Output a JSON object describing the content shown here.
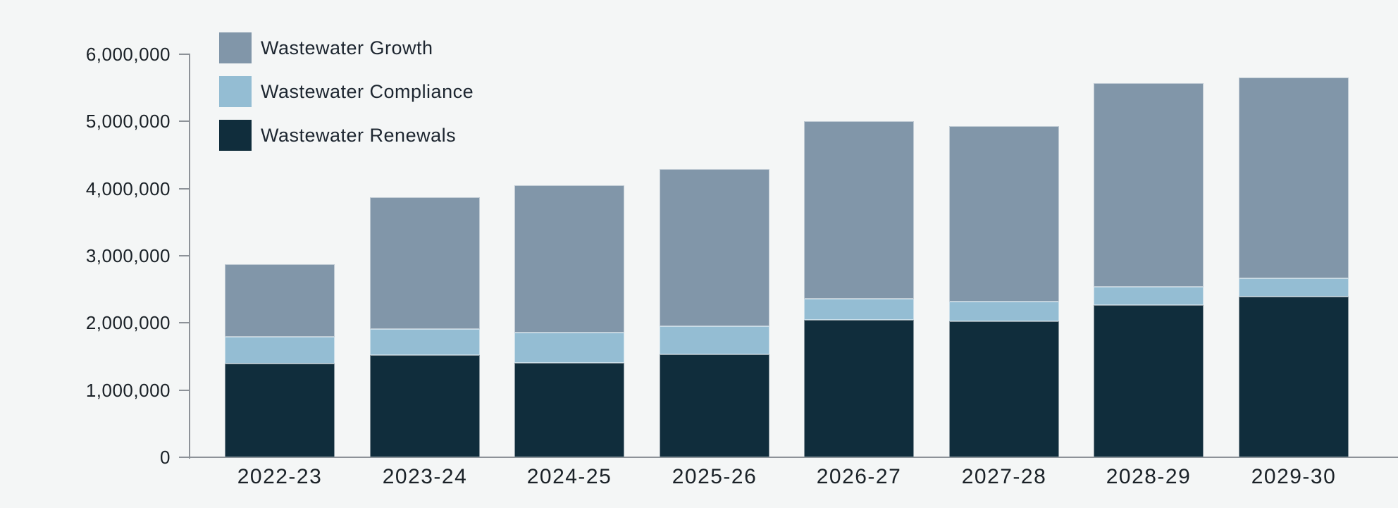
{
  "colors": {
    "background": "#f4f6f6",
    "axis": "#8d9298",
    "text": "#1a2127",
    "renewals": "#102d3c",
    "compliance": "#94bdd3",
    "growth": "#8196a9"
  },
  "legend": {
    "items": [
      {
        "label": "Wastewater Growth",
        "color": "#8196a9"
      },
      {
        "label": "Wastewater Compliance",
        "color": "#94bdd3"
      },
      {
        "label": "Wastewater Renewals",
        "color": "#102d3c"
      }
    ]
  },
  "chart_data": {
    "type": "bar",
    "stacked": true,
    "title": "",
    "xlabel": "",
    "ylabel": "",
    "grid": false,
    "legend_position": "top-left",
    "categories": [
      "2022-23",
      "2023-24",
      "2024-25",
      "2025-26",
      "2026-27",
      "2027-28",
      "2028-29",
      "2029-30"
    ],
    "series": [
      {
        "name": "Wastewater Renewals",
        "color": "#102d3c",
        "values": [
          1400000,
          1520000,
          1410000,
          1530000,
          2050000,
          2020000,
          2270000,
          2390000
        ]
      },
      {
        "name": "Wastewater Compliance",
        "color": "#94bdd3",
        "values": [
          390000,
          390000,
          450000,
          420000,
          310000,
          300000,
          270000,
          270000
        ]
      },
      {
        "name": "Wastewater Growth",
        "color": "#8196a9",
        "values": [
          1080000,
          1960000,
          2190000,
          2340000,
          2640000,
          2610000,
          3030000,
          2990000
        ]
      }
    ],
    "totals": [
      2870000,
      3870000,
      4050000,
      4290000,
      5000000,
      4930000,
      5570000,
      5650000
    ],
    "y_axis": {
      "min": 0,
      "max": 6000000,
      "tick_interval": 1000000,
      "tick_labels": [
        "0",
        "1,000,000",
        "2,000,000",
        "3,000,000",
        "4,000,000",
        "5,000,000",
        "6,000,000"
      ]
    }
  }
}
